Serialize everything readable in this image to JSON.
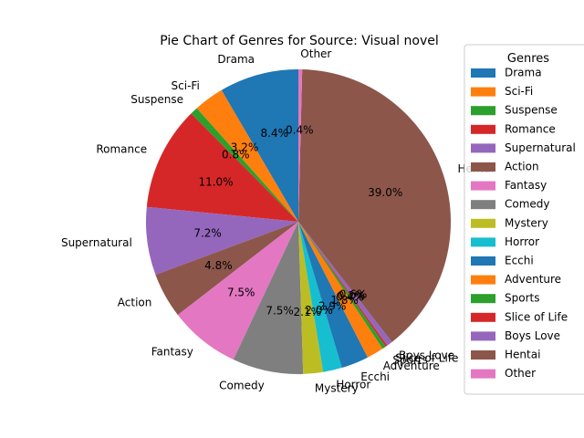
{
  "chart_data": {
    "type": "pie",
    "title": "Pie Chart of Genres for Source: Visual novel",
    "legend_title": "Genres",
    "legend_placement": "right",
    "start_angle_deg": 90,
    "direction": "counterclockwise",
    "slices": [
      {
        "label": "Drama",
        "pct": 8.4,
        "pct_label": "8.4%",
        "color": "#1f77b4"
      },
      {
        "label": "Sci-Fi",
        "pct": 3.2,
        "pct_label": "3.2%",
        "color": "#ff7f0e"
      },
      {
        "label": "Suspense",
        "pct": 0.8,
        "pct_label": "0.8%",
        "color": "#2ca02c"
      },
      {
        "label": "Romance",
        "pct": 11.0,
        "pct_label": "11.0%",
        "color": "#d62728"
      },
      {
        "label": "Supernatural",
        "pct": 7.2,
        "pct_label": "7.2%",
        "color": "#9467bd"
      },
      {
        "label": "Action",
        "pct": 4.8,
        "pct_label": "4.8%",
        "color": "#8c564b"
      },
      {
        "label": "Fantasy",
        "pct": 7.5,
        "pct_label": "7.5%",
        "color": "#e377c2"
      },
      {
        "label": "Comedy",
        "pct": 7.5,
        "pct_label": "7.5%",
        "color": "#7f7f7f"
      },
      {
        "label": "Mystery",
        "pct": 2.1,
        "pct_label": "2.1%",
        "color": "#bcbd22"
      },
      {
        "label": "Horror",
        "pct": 2.0,
        "pct_label": "2.0%",
        "color": "#17becf"
      },
      {
        "label": "Ecchi",
        "pct": 2.9,
        "pct_label": "2.9%",
        "color": "#1f77b4"
      },
      {
        "label": "Adventure",
        "pct": 1.8,
        "pct_label": "1.8%",
        "color": "#ff7f0e"
      },
      {
        "label": "Sports",
        "pct": 0.4,
        "pct_label": "0.4%",
        "color": "#2ca02c"
      },
      {
        "label": "Slice of Life",
        "pct": 0.2,
        "pct_label": "0.2%",
        "color": "#d62728"
      },
      {
        "label": "Boys Love",
        "pct": 0.6,
        "pct_label": "0.6%",
        "color": "#9467bd"
      },
      {
        "label": "Hentai",
        "pct": 39.0,
        "pct_label": "39.0%",
        "color": "#8c564b"
      },
      {
        "label": "Other",
        "pct": 0.4,
        "pct_label": "0.4%",
        "color": "#e377c2"
      }
    ]
  }
}
